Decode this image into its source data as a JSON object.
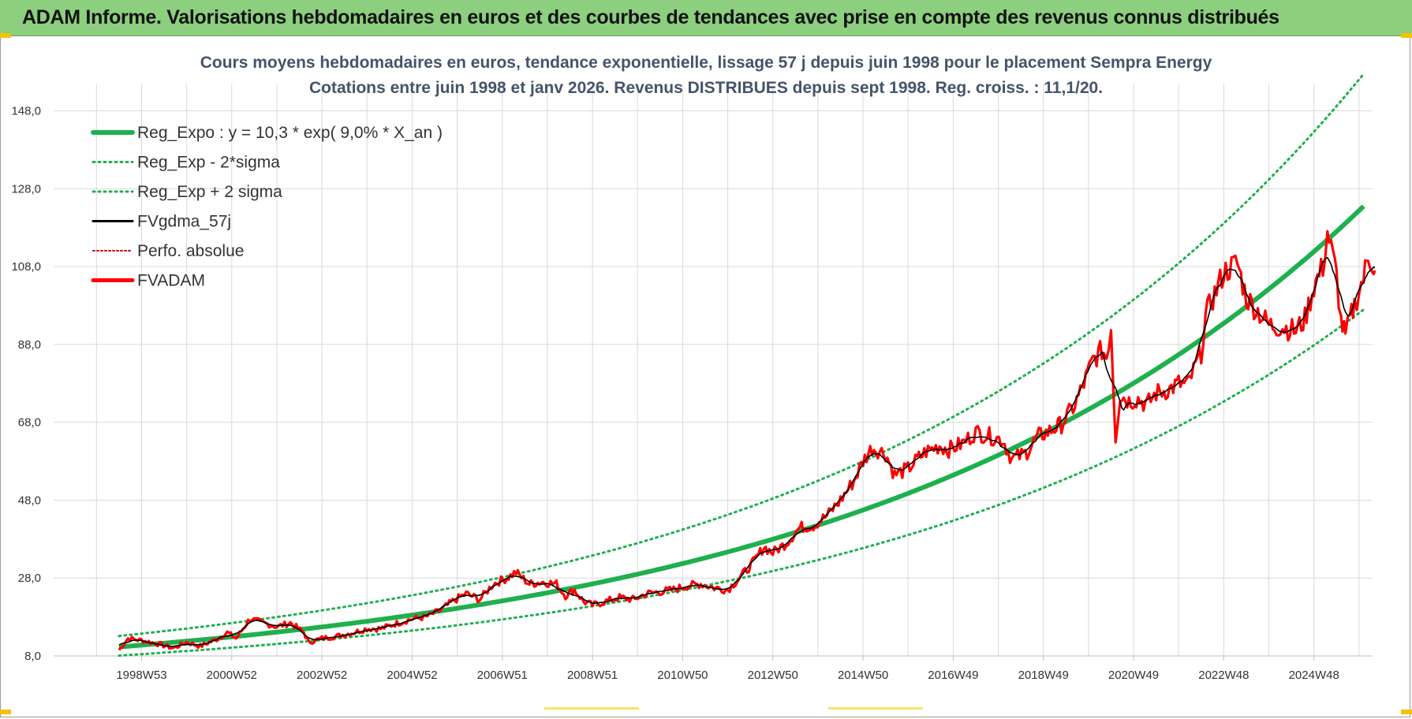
{
  "header": {
    "banner_text": "ADAM Informe. Valorisations hebdomadaires en euros et des courbes de tendances avec prise en compte des revenus connus distribués"
  },
  "colors": {
    "banner_bg": "#8ccf7e",
    "trend_green": "#1fb04e",
    "smooth_black": "#000000",
    "price_red": "#ff0000",
    "perfo_red": "#c00000",
    "grid": "#d9d9d9"
  },
  "chart_data": {
    "type": "line",
    "title": "Cours moyens hebdomadaires en euros, tendance exponentielle, lissage 57 j depuis juin 1998 pour le placement Sempra Energy",
    "subtitle": "Cotations entre juin 1998 et janv 2026.  Revenus DISTRIBUES  depuis sept 1998.  Reg. croiss. : 11,1/20.",
    "ylim": [
      8,
      155
    ],
    "y_ticks": [
      "8,0",
      "28,0",
      "48,0",
      "68,0",
      "88,0",
      "108,0",
      "128,0",
      "148,0"
    ],
    "x_tick_labels": [
      {
        "label": "1998W53",
        "t": 1999.0
      },
      {
        "label": "2000W52",
        "t": 2001.0
      },
      {
        "label": "2002W52",
        "t": 2003.0
      },
      {
        "label": "2004W52",
        "t": 2005.0
      },
      {
        "label": "2006W51",
        "t": 2007.0
      },
      {
        "label": "2008W51",
        "t": 2009.0
      },
      {
        "label": "2010W50",
        "t": 2011.0
      },
      {
        "label": "2012W50",
        "t": 2013.0
      },
      {
        "label": "2014W50",
        "t": 2015.0
      },
      {
        "label": "2016W49",
        "t": 2017.0
      },
      {
        "label": "2018W49",
        "t": 2019.0
      },
      {
        "label": "2020W49",
        "t": 2021.0
      },
      {
        "label": "2022W48",
        "t": 2023.0
      },
      {
        "label": "2024W48",
        "t": 2025.0
      }
    ],
    "x_range": [
      1997.05,
      2026.3
    ],
    "grid": true,
    "legend_position": "top-left",
    "legend": [
      {
        "name": "Reg_Expo : y = 10,3 * exp( 9,0% *  X_an )",
        "style": "solid-green-thick"
      },
      {
        "name": "Reg_Exp - 2*sigma",
        "style": "dotted-green"
      },
      {
        "name": "Reg_Exp + 2 sigma",
        "style": "dotted-green"
      },
      {
        "name": "FVgdma_57j",
        "style": "solid-black"
      },
      {
        "name": "Perfo. absolue",
        "style": "dotted-red"
      },
      {
        "name": "FVADAM",
        "style": "solid-red-thick"
      }
    ],
    "trend": {
      "start_t": 1998.5,
      "end_t": 2026.1,
      "a": 10.3,
      "k": 0.09,
      "lower_factor": 0.785,
      "upper_factor": 1.275
    },
    "series": [
      {
        "name": "FVADAM",
        "points": [
          [
            1998.5,
            9.5
          ],
          [
            1998.7,
            12.5
          ],
          [
            1999.0,
            12.0
          ],
          [
            1999.4,
            11.0
          ],
          [
            1999.7,
            10.0
          ],
          [
            2000.0,
            11.5
          ],
          [
            2000.3,
            10.5
          ],
          [
            2000.7,
            12.5
          ],
          [
            2000.9,
            14.0
          ],
          [
            2001.1,
            12.5
          ],
          [
            2001.4,
            17.5
          ],
          [
            2001.7,
            16.5
          ],
          [
            2002.0,
            15.5
          ],
          [
            2002.3,
            16.5
          ],
          [
            2002.6,
            14.0
          ],
          [
            2002.7,
            11.5
          ],
          [
            2003.0,
            12.5
          ],
          [
            2003.3,
            13.0
          ],
          [
            2003.7,
            14.0
          ],
          [
            2004.0,
            15.0
          ],
          [
            2004.3,
            15.0
          ],
          [
            2004.7,
            16.5
          ],
          [
            2005.0,
            17.5
          ],
          [
            2005.3,
            18.0
          ],
          [
            2005.6,
            19.5
          ],
          [
            2005.9,
            22.0
          ],
          [
            2006.2,
            24.0
          ],
          [
            2006.5,
            22.5
          ],
          [
            2006.8,
            26.5
          ],
          [
            2007.1,
            28.0
          ],
          [
            2007.3,
            29.5
          ],
          [
            2007.6,
            26.5
          ],
          [
            2007.9,
            27.0
          ],
          [
            2008.2,
            26.5
          ],
          [
            2008.4,
            23.5
          ],
          [
            2008.6,
            25.0
          ],
          [
            2008.8,
            22.0
          ],
          [
            2009.0,
            21.0
          ],
          [
            2009.3,
            22.0
          ],
          [
            2009.6,
            23.0
          ],
          [
            2009.9,
            22.5
          ],
          [
            2010.2,
            24.0
          ],
          [
            2010.5,
            24.5
          ],
          [
            2010.8,
            25.0
          ],
          [
            2011.1,
            26.0
          ],
          [
            2011.4,
            26.5
          ],
          [
            2011.7,
            25.5
          ],
          [
            2012.0,
            25.0
          ],
          [
            2012.3,
            28.5
          ],
          [
            2012.6,
            32.5
          ],
          [
            2012.8,
            36.0
          ],
          [
            2013.0,
            34.5
          ],
          [
            2013.3,
            37.0
          ],
          [
            2013.6,
            41.0
          ],
          [
            2013.9,
            41.5
          ],
          [
            2014.2,
            44.0
          ],
          [
            2014.5,
            48.0
          ],
          [
            2014.8,
            53.0
          ],
          [
            2015.0,
            58.0
          ],
          [
            2015.2,
            61.5
          ],
          [
            2015.5,
            60.0
          ],
          [
            2015.7,
            54.5
          ],
          [
            2016.0,
            56.0
          ],
          [
            2016.2,
            58.5
          ],
          [
            2016.4,
            60.5
          ],
          [
            2016.7,
            62.0
          ],
          [
            2016.9,
            61.0
          ],
          [
            2017.2,
            62.5
          ],
          [
            2017.5,
            65.5
          ],
          [
            2017.8,
            64.5
          ],
          [
            2018.1,
            63.5
          ],
          [
            2018.3,
            58.5
          ],
          [
            2018.6,
            60.0
          ],
          [
            2018.9,
            64.5
          ],
          [
            2019.1,
            65.5
          ],
          [
            2019.4,
            67.5
          ],
          [
            2019.7,
            72.5
          ],
          [
            2019.9,
            78.0
          ],
          [
            2020.1,
            84.0
          ],
          [
            2020.3,
            86.5
          ],
          [
            2020.4,
            85.0
          ],
          [
            2020.5,
            92.5
          ],
          [
            2020.6,
            64.0
          ],
          [
            2020.7,
            75.0
          ],
          [
            2020.9,
            73.5
          ],
          [
            2021.1,
            74.0
          ],
          [
            2021.3,
            72.5
          ],
          [
            2021.5,
            75.5
          ],
          [
            2021.8,
            76.5
          ],
          [
            2022.0,
            78.0
          ],
          [
            2022.2,
            77.5
          ],
          [
            2022.5,
            86.0
          ],
          [
            2022.6,
            95.5
          ],
          [
            2022.8,
            101.0
          ],
          [
            2023.0,
            106.5
          ],
          [
            2023.3,
            109.0
          ],
          [
            2023.5,
            100.0
          ],
          [
            2023.8,
            96.0
          ],
          [
            2024.0,
            93.0
          ],
          [
            2024.3,
            92.5
          ],
          [
            2024.6,
            91.5
          ],
          [
            2024.8,
            94.5
          ],
          [
            2025.0,
            103.0
          ],
          [
            2025.2,
            108.0
          ],
          [
            2025.3,
            117.0
          ],
          [
            2025.5,
            106.0
          ],
          [
            2025.6,
            94.0
          ],
          [
            2025.7,
            90.0
          ],
          [
            2025.8,
            94.5
          ],
          [
            2025.9,
            98.0
          ],
          [
            2026.0,
            102.0
          ],
          [
            2026.1,
            105.0
          ],
          [
            2026.2,
            111.0
          ],
          [
            2026.3,
            109.0
          ],
          [
            2026.35,
            106.0
          ]
        ]
      }
    ]
  }
}
